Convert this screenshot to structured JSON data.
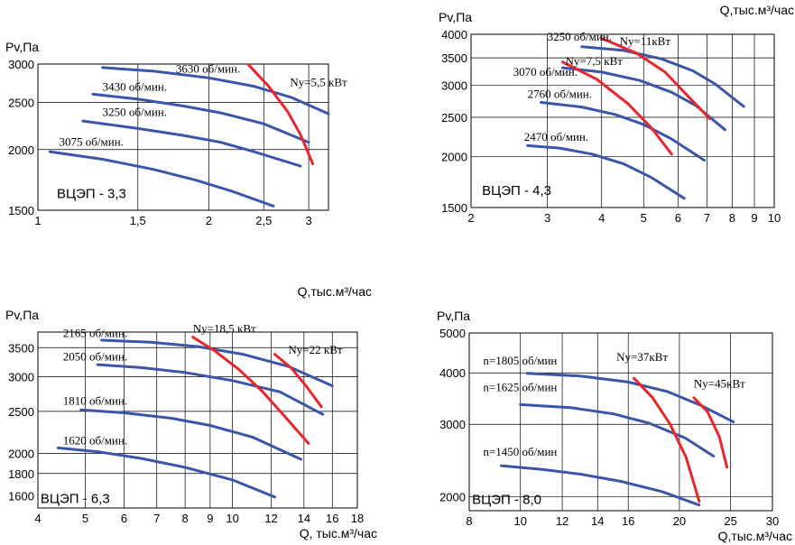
{
  "chart_data": [
    {
      "type": "line",
      "title": "ВЦЭП - 3,3",
      "ylabel": "Pv,Па",
      "xlabel": "",
      "x_scale": "log",
      "y_scale": "log",
      "xlim": [
        1.0,
        3.25
      ],
      "ylim": [
        1500,
        3000
      ],
      "xticks": [
        {
          "v": 1,
          "label": "1"
        },
        {
          "v": 1.5,
          "label": "1,5"
        },
        {
          "v": 2,
          "label": "2"
        },
        {
          "v": 2.5,
          "label": "2,5"
        },
        {
          "v": 3,
          "label": "3"
        }
      ],
      "yticks": [
        {
          "v": 1500,
          "label": "1500"
        },
        {
          "v": 2000,
          "label": "2000"
        },
        {
          "v": 2500,
          "label": "2500"
        },
        {
          "v": 3000,
          "label": "3000"
        }
      ],
      "xgrid": [
        1.5,
        2,
        2.5,
        3
      ],
      "ygrid": [
        2000,
        2500
      ],
      "series": [
        {
          "name": "3075 об/мин.",
          "x": [
            1.05,
            1.3,
            1.6,
            1.9,
            2.2,
            2.6
          ],
          "y": [
            1980,
            1910,
            1820,
            1730,
            1640,
            1530
          ]
        },
        {
          "name": "3250 об/мин.",
          "x": [
            1.2,
            1.5,
            1.8,
            2.1,
            2.4,
            2.9
          ],
          "y": [
            2290,
            2210,
            2140,
            2070,
            1980,
            1850
          ]
        },
        {
          "name": "3430 об/мин.",
          "x": [
            1.25,
            1.5,
            1.8,
            2.1,
            2.5,
            3.0
          ],
          "y": [
            2600,
            2540,
            2460,
            2380,
            2260,
            2070
          ]
        },
        {
          "name": "3630 об/мин.",
          "x": [
            1.3,
            1.6,
            2.0,
            2.4,
            2.8,
            3.25
          ],
          "y": [
            2950,
            2900,
            2810,
            2700,
            2560,
            2370
          ]
        }
      ],
      "power_curves": [
        {
          "name": "Ny=5,5 кВт",
          "x": [
            2.35,
            2.55,
            2.75,
            2.9,
            3.05
          ],
          "y": [
            2990,
            2700,
            2400,
            2150,
            1870
          ]
        }
      ]
    },
    {
      "type": "line",
      "title": "ВЦЭП - 4,3",
      "ylabel": "Pv,Па",
      "xlabel": "Q,тыс.м³/час",
      "x_scale": "log",
      "y_scale": "log",
      "xlim": [
        2,
        10
      ],
      "ylim": [
        1500,
        4000
      ],
      "xticks": [
        {
          "v": 2,
          "label": "2"
        },
        {
          "v": 3,
          "label": "3"
        },
        {
          "v": 4,
          "label": "4"
        },
        {
          "v": 5,
          "label": "5"
        },
        {
          "v": 6,
          "label": "6"
        },
        {
          "v": 7,
          "label": "7"
        },
        {
          "v": 8,
          "label": "8"
        },
        {
          "v": 9,
          "label": "9"
        },
        {
          "v": 10,
          "label": "10"
        }
      ],
      "yticks": [
        {
          "v": 1500,
          "label": "1500"
        },
        {
          "v": 2000,
          "label": "2000"
        },
        {
          "v": 2500,
          "label": "2500"
        },
        {
          "v": 3000,
          "label": "3000"
        },
        {
          "v": 3500,
          "label": "3500"
        },
        {
          "v": 4000,
          "label": "4000"
        }
      ],
      "xgrid": [
        3,
        4,
        5,
        6,
        7,
        8,
        9
      ],
      "ygrid": [
        2000,
        2500,
        3000,
        3500
      ],
      "series": [
        {
          "name": "2470 об/мин.",
          "x": [
            2.7,
            3.2,
            3.8,
            4.5,
            5.2,
            6.2
          ],
          "y": [
            2130,
            2100,
            2030,
            1920,
            1780,
            1580
          ]
        },
        {
          "name": "2760 об/мин.",
          "x": [
            2.9,
            3.6,
            4.3,
            5.0,
            5.8,
            6.9
          ],
          "y": [
            2720,
            2650,
            2540,
            2400,
            2210,
            1960
          ]
        },
        {
          "name": "3070 об/мин.",
          "x": [
            3.25,
            4.0,
            4.9,
            5.8,
            6.6,
            7.7
          ],
          "y": [
            3310,
            3230,
            3080,
            2880,
            2670,
            2330
          ]
        },
        {
          "name": "3250 об/мин.",
          "x": [
            3.6,
            4.5,
            5.5,
            6.5,
            7.3,
            8.5
          ],
          "y": [
            3730,
            3650,
            3480,
            3250,
            3020,
            2660
          ]
        }
      ],
      "power_curves": [
        {
          "name": "Ny=7,5 кВт",
          "x": [
            3.25,
            3.9,
            4.6,
            5.2,
            5.8
          ],
          "y": [
            3420,
            3100,
            2700,
            2360,
            2030
          ]
        },
        {
          "name": "Ny=11кВт",
          "x": [
            4.0,
            4.8,
            5.6,
            6.3,
            7.1
          ],
          "y": [
            3910,
            3600,
            3230,
            2830,
            2480
          ]
        }
      ]
    },
    {
      "type": "line",
      "title": "ВЦЭП -  6,3",
      "ylabel": "Pv,Па",
      "xlabel": "Q, тыс.м³/час",
      "top_xlabel": "Q,тыс.м³/час",
      "x_scale": "log",
      "y_scale": "log",
      "xlim": [
        4,
        18
      ],
      "ylim": [
        1500,
        3800
      ],
      "xticks": [
        {
          "v": 4,
          "label": "4"
        },
        {
          "v": 5,
          "label": "5"
        },
        {
          "v": 6,
          "label": "6"
        },
        {
          "v": 7,
          "label": "7"
        },
        {
          "v": 8,
          "label": "8"
        },
        {
          "v": 9,
          "label": "9"
        },
        {
          "v": 10,
          "label": "10"
        },
        {
          "v": 12,
          "label": "12"
        },
        {
          "v": 14,
          "label": "14"
        },
        {
          "v": 16,
          "label": "16"
        },
        {
          "v": 18,
          "label": "18"
        }
      ],
      "yticks": [
        {
          "v": 1600,
          "label": "1600"
        },
        {
          "v": 1800,
          "label": "1800"
        },
        {
          "v": 2000,
          "label": "2000"
        },
        {
          "v": 2500,
          "label": "2500"
        },
        {
          "v": 3000,
          "label": "3000"
        },
        {
          "v": 3500,
          "label": "3500"
        }
      ],
      "xgrid": [
        5,
        6,
        7,
        8,
        9,
        10,
        12,
        14,
        16
      ],
      "ygrid": [
        1800,
        2000,
        2500,
        3000,
        3500
      ],
      "series": [
        {
          "name": "1620 об/мин.",
          "x": [
            4.4,
            5.3,
            6.5,
            8.0,
            10.0,
            12.2
          ],
          "y": [
            2060,
            2020,
            1950,
            1860,
            1740,
            1590
          ]
        },
        {
          "name": "1810 об/мин.",
          "x": [
            4.9,
            6.0,
            7.5,
            9.0,
            11.0,
            13.8
          ],
          "y": [
            2520,
            2480,
            2410,
            2320,
            2180,
            1940
          ]
        },
        {
          "name": "2050 об/мин.",
          "x": [
            5.3,
            6.5,
            8.0,
            10.0,
            12.5,
            15.3
          ],
          "y": [
            3200,
            3150,
            3070,
            2940,
            2770,
            2460
          ]
        },
        {
          "name": "2165 об/мин.",
          "x": [
            5.4,
            6.8,
            8.5,
            10.5,
            13.0,
            16.0
          ],
          "y": [
            3640,
            3600,
            3520,
            3380,
            3170,
            2860
          ]
        }
      ],
      "power_curves": [
        {
          "name": "Ny=18,5 кВт",
          "x": [
            8.3,
            9.2,
            10.3,
            11.5,
            12.8,
            14.3
          ],
          "y": [
            3700,
            3440,
            3120,
            2780,
            2430,
            2110
          ]
        },
        {
          "name": "Ny=22 кВт",
          "x": [
            12.2,
            13.2,
            14.2,
            15.2
          ],
          "y": [
            3380,
            3140,
            2840,
            2560
          ]
        }
      ]
    },
    {
      "type": "line",
      "title": "ВЦЭП - 8,0",
      "ylabel": "Pv,Па",
      "xlabel": "Q,тыс.м³/час",
      "x_scale": "log",
      "y_scale": "log",
      "xlim": [
        8,
        30
      ],
      "ylim": [
        1850,
        5000
      ],
      "xticks": [
        {
          "v": 8,
          "label": "8"
        },
        {
          "v": 10,
          "label": "10"
        },
        {
          "v": 12,
          "label": "12"
        },
        {
          "v": 14,
          "label": "14"
        },
        {
          "v": 16,
          "label": "16"
        },
        {
          "v": 20,
          "label": "20"
        },
        {
          "v": 25,
          "label": "25"
        },
        {
          "v": 30,
          "label": "30"
        }
      ],
      "yticks": [
        {
          "v": 2000,
          "label": "2000"
        },
        {
          "v": 3000,
          "label": "3000"
        },
        {
          "v": 4000,
          "label": "4000"
        },
        {
          "v": 5000,
          "label": "5000"
        }
      ],
      "xgrid": [
        10,
        12,
        14,
        16,
        20,
        25
      ],
      "ygrid": [
        2000,
        3000,
        4000
      ],
      "series": [
        {
          "name": "n=1450 об/мин",
          "x": [
            9.2,
            11.0,
            13.0,
            15.5,
            18.5,
            21.8
          ],
          "y": [
            2380,
            2330,
            2270,
            2180,
            2060,
            1910
          ]
        },
        {
          "name": "n=1625 об/мин",
          "x": [
            10.0,
            12.5,
            15.0,
            17.5,
            20.5,
            23.2
          ],
          "y": [
            3350,
            3290,
            3180,
            3020,
            2780,
            2510
          ]
        },
        {
          "name": "n=1805 об/мин",
          "x": [
            10.3,
            13.0,
            16.0,
            19.0,
            22.0,
            25.3
          ],
          "y": [
            3990,
            3930,
            3800,
            3600,
            3330,
            3040
          ]
        }
      ],
      "power_curves": [
        {
          "name": "Ny=37кВт",
          "x": [
            16.4,
            17.8,
            19.2,
            20.6,
            21.8
          ],
          "y": [
            3880,
            3480,
            3000,
            2490,
            1950
          ]
        },
        {
          "name": "Ny=45кВт",
          "x": [
            21.3,
            22.6,
            23.8,
            24.6
          ],
          "y": [
            3480,
            3220,
            2800,
            2360
          ]
        }
      ]
    }
  ],
  "panels": [
    {
      "box": {
        "left": 42,
        "top": 71,
        "right": 364,
        "bottom": 233
      },
      "model_label": {
        "text": "ВЦЭП - 3,3",
        "x": 1.08,
        "y": 1590
      },
      "speed_labels": [
        {
          "text": "3075 об/мин.",
          "x": 1.09,
          "y": 2035
        },
        {
          "text": "3250 об/мин.",
          "x": 1.3,
          "y": 2345
        },
        {
          "text": "3430 об/мин.",
          "x": 1.3,
          "y": 2645
        },
        {
          "text": "3630 об/мин.",
          "x": 1.75,
          "y": 2880
        }
      ],
      "power_labels": [
        {
          "text": "Ny=5,5 кВт",
          "x": 2.78,
          "y": 2700
        }
      ],
      "ylabel_pos": "top-left",
      "xlabel_pos": "none"
    },
    {
      "box": {
        "left": 522,
        "top": 38,
        "right": 858,
        "bottom": 230
      },
      "model_label": {
        "text": "ВЦЭП - 4,3",
        "x": 2.12,
        "y": 1610
      },
      "speed_labels": [
        {
          "text": "2470 об/мин.",
          "x": 2.65,
          "y": 2190
        },
        {
          "text": "2760 об/мин.",
          "x": 2.7,
          "y": 2790
        },
        {
          "text": "3070 об/мин.",
          "x": 2.5,
          "y": 3160
        },
        {
          "text": "3250 об/мин.",
          "x": 3.0,
          "y": 3860
        }
      ],
      "power_labels": [
        {
          "text": "Ny=7,5 кВт",
          "x": 3.3,
          "y": 3360
        },
        {
          "text": "Ny=11кВт",
          "x": 4.4,
          "y": 3760
        }
      ],
      "ylabel_pos": "top-left",
      "xlabel_pos": "top-right"
    },
    {
      "box": {
        "left": 42,
        "top": 368,
        "right": 396,
        "bottom": 563
      },
      "model_label": {
        "text": "ВЦЭП -  6,3",
        "x": 4.05,
        "y": 1540
      },
      "speed_labels": [
        {
          "text": "1620 об/мин.",
          "x": 4.5,
          "y": 2100
        },
        {
          "text": "1810 об/мин.",
          "x": 4.5,
          "y": 2590
        },
        {
          "text": "2050 об/мин.",
          "x": 4.5,
          "y": 3270
        },
        {
          "text": "2165 об/мин.",
          "x": 4.5,
          "y": 3700
        }
      ],
      "power_labels": [
        {
          "text": "Ny=18,5 кВт",
          "x": 8.3,
          "y": 3790
        },
        {
          "text": "Ny=22 кВт",
          "x": 13.0,
          "y": 3390
        }
      ],
      "ylabel_pos": "top-left",
      "xlabel_pos": "bottom-right"
    },
    {
      "box": {
        "left": 520,
        "top": 369,
        "right": 856,
        "bottom": 566
      },
      "model_label": {
        "text": "ВЦЭП - 8,0",
        "x": 8.1,
        "y": 1920
      },
      "speed_labels": [
        {
          "text": "n=1450 об/мин",
          "x": 8.5,
          "y": 2520
        },
        {
          "text": "n=1625 об/мин",
          "x": 8.5,
          "y": 3610
        },
        {
          "text": "n=1805 об/мин",
          "x": 8.5,
          "y": 4190
        }
      ],
      "power_labels": [
        {
          "text": "Ny=37кВт",
          "x": 15.2,
          "y": 4280
        },
        {
          "text": "Ny=45кВт",
          "x": 21.3,
          "y": 3680
        }
      ],
      "ylabel_pos": "top-left",
      "xlabel_pos": "bottom-right"
    }
  ],
  "colors": {
    "speed_curve": "#3b55a8",
    "power_curve": "#e8262b",
    "grid": "#000000",
    "text": "#000000"
  }
}
